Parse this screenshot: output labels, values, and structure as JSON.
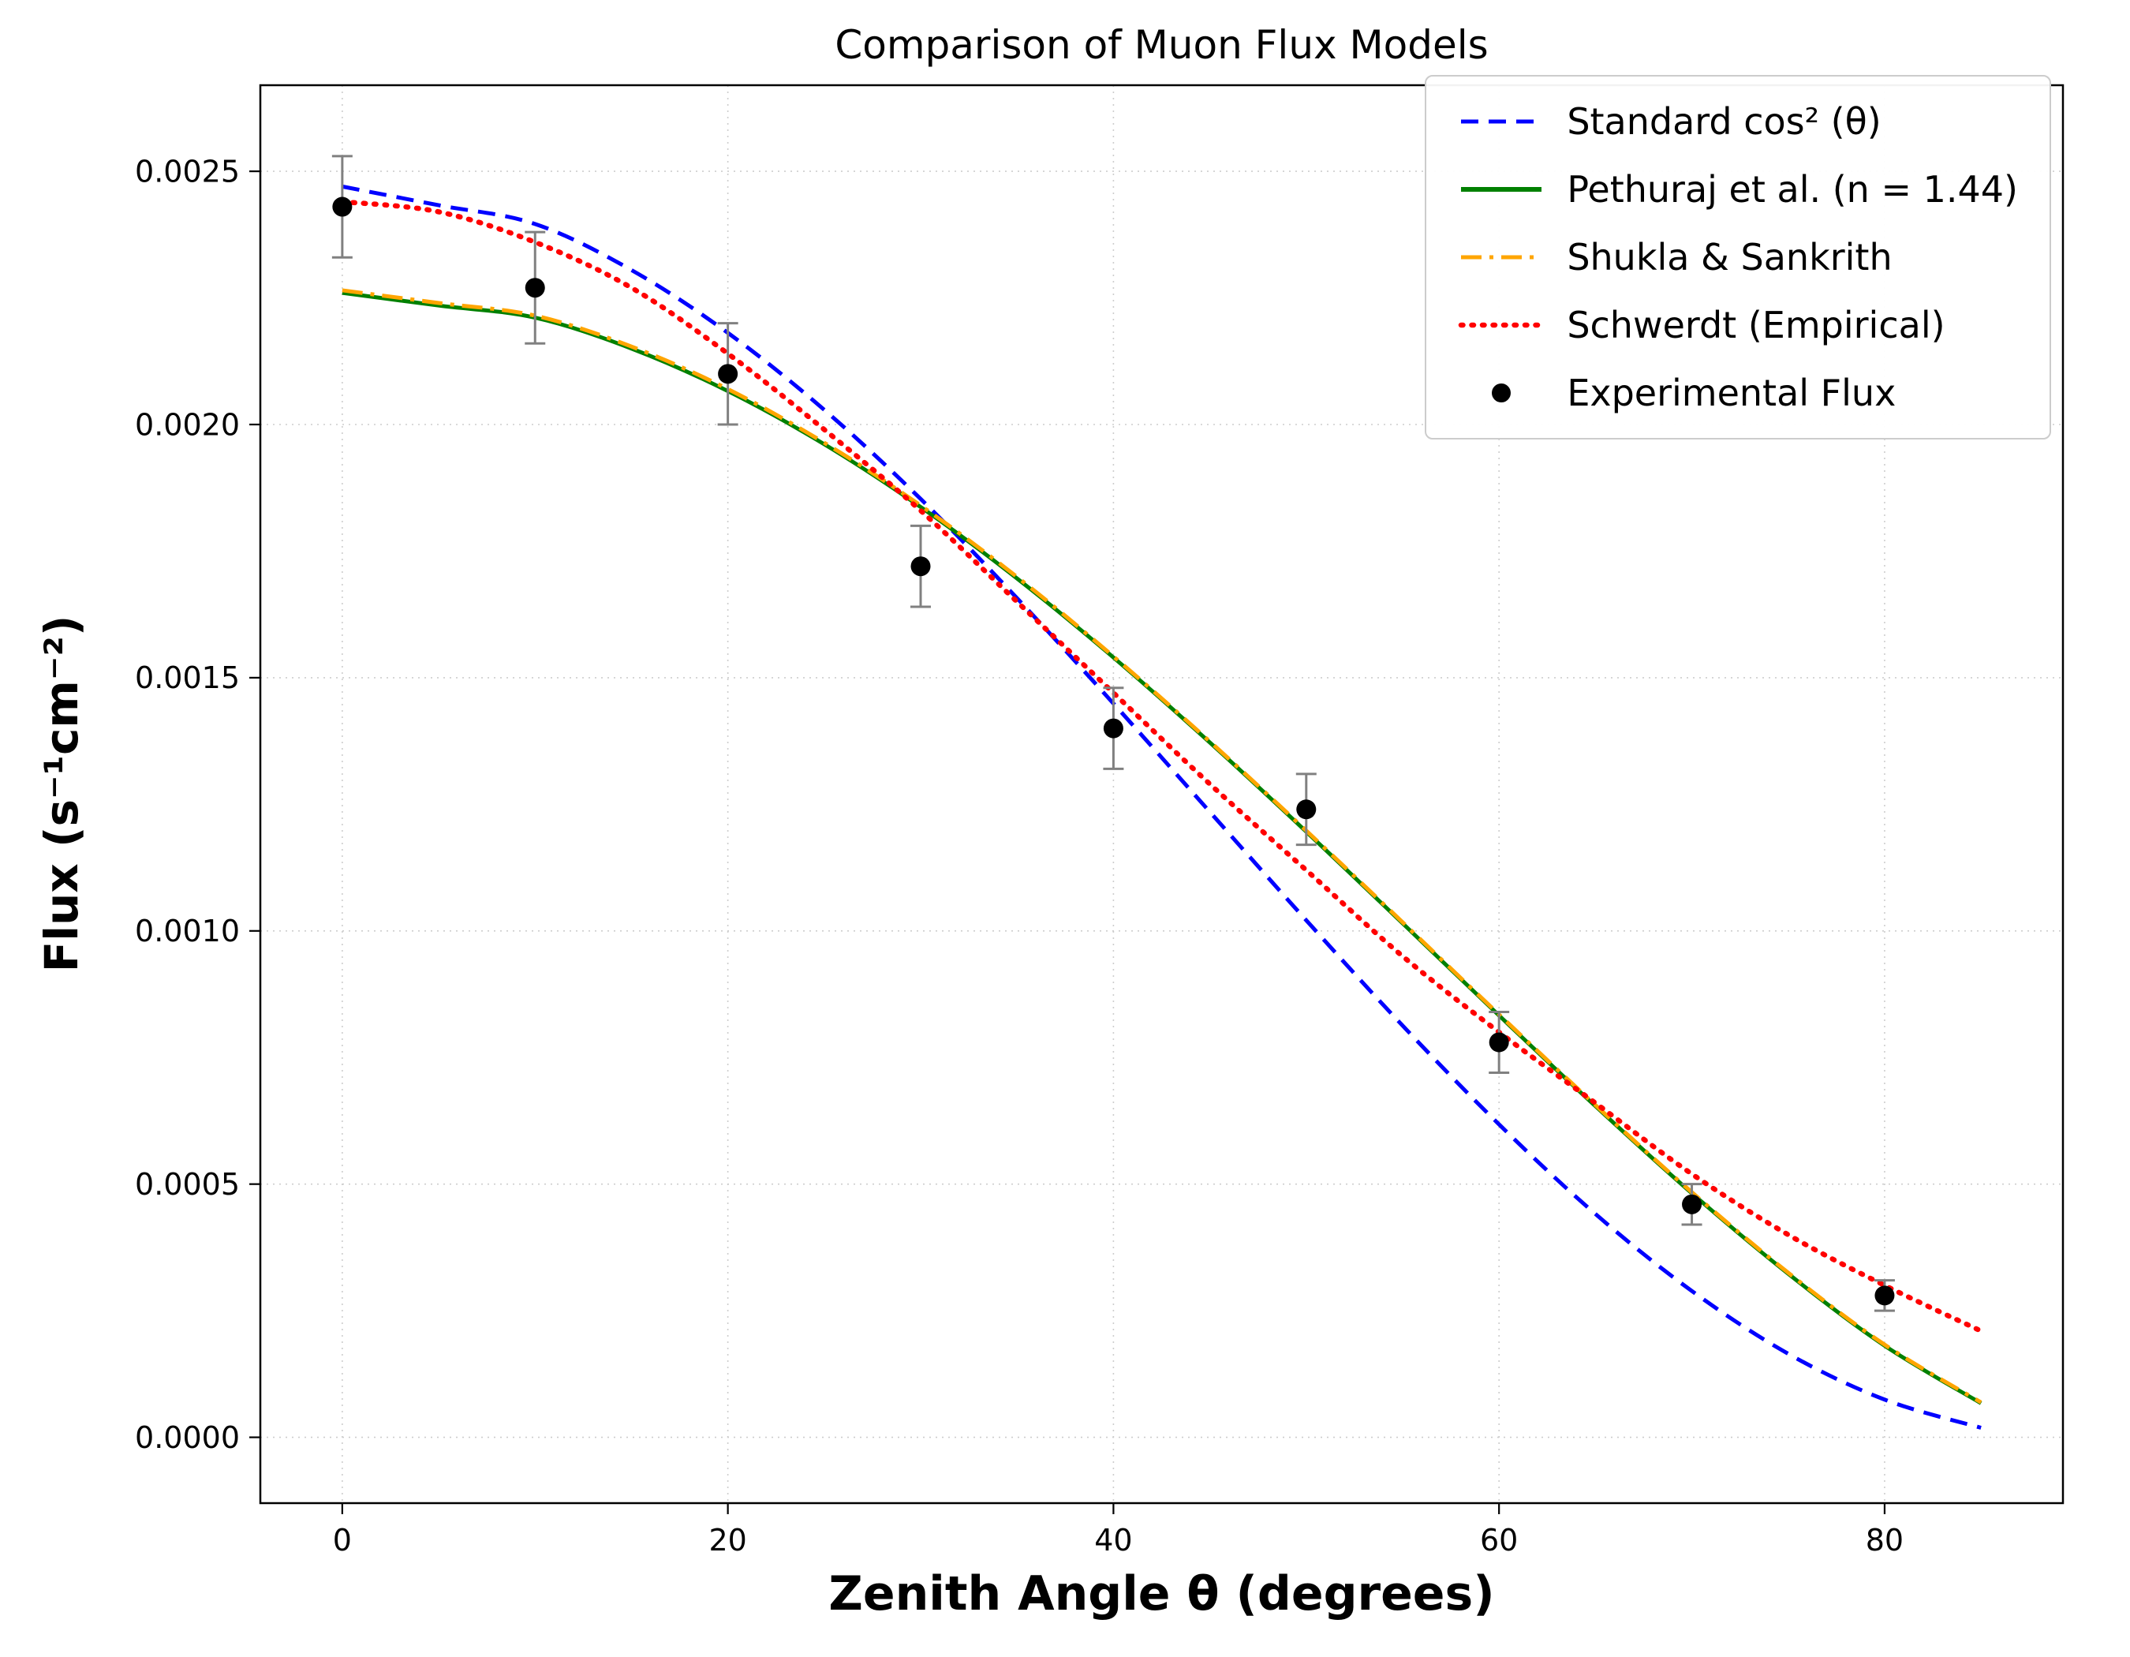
{
  "figure": {
    "title": "Comparison of Muon Flux Models",
    "xlabel": "Zenith Angle θ (degrees)",
    "ylabel": "Flux (s⁻¹cm⁻²)"
  },
  "chart_data": {
    "type": "line",
    "title": "Comparison of Muon Flux Models",
    "xlabel": "Zenith Angle θ (degrees)",
    "ylabel": "Flux (s⁻¹cm⁻²)",
    "xlim": [
      -4.25,
      89.25
    ],
    "ylim": [
      -0.00013,
      0.00267
    ],
    "grid": true,
    "legend_position": "upper right",
    "xticks": {
      "values": [
        0,
        20,
        40,
        60,
        80
      ],
      "labels": [
        "0",
        "20",
        "40",
        "60",
        "80"
      ]
    },
    "yticks": {
      "values": [
        0.0,
        0.0005,
        0.001,
        0.0015,
        0.002,
        0.0025
      ],
      "labels": [
        "0.0000",
        "0.0005",
        "0.0010",
        "0.0015",
        "0.0020",
        "0.0025"
      ]
    },
    "series": [
      {
        "name": "Standard cos² (θ)",
        "color": "#0000ff",
        "linestyle": "dashed",
        "x": [
          0,
          5,
          10,
          15,
          20,
          25,
          30,
          35,
          40,
          45,
          50,
          55,
          60,
          65,
          70,
          75,
          80,
          85
        ],
        "y": [
          0.00247,
          0.002433,
          0.002396,
          0.002305,
          0.002181,
          0.002029,
          0.001853,
          0.001657,
          0.001449,
          0.001235,
          0.001021,
          0.000813,
          0.000618,
          0.000441,
          0.000289,
          0.000165,
          7.45e-05,
          1.88e-05
        ]
      },
      {
        "name": "Pethuraj et al. (n = 1.44)",
        "color": "#008000",
        "linestyle": "solid",
        "x": [
          0,
          5,
          10,
          15,
          20,
          25,
          30,
          35,
          40,
          45,
          50,
          55,
          60,
          65,
          70,
          75,
          80,
          85
        ],
        "y": [
          0.00226,
          0.002235,
          0.002211,
          0.00215,
          0.002066,
          0.001961,
          0.001837,
          0.001696,
          0.00154,
          0.001372,
          0.001196,
          0.001015,
          0.000833,
          0.000654,
          0.000482,
          0.000323,
          0.000181,
          6.73e-05
        ]
      },
      {
        "name": "Shukla & Sankrith",
        "color": "#ffa500",
        "linestyle": "dashdot",
        "x": [
          0,
          5,
          10,
          15,
          20,
          25,
          30,
          35,
          40,
          45,
          50,
          55,
          60,
          65,
          70,
          75,
          80,
          85
        ],
        "y": [
          0.002265,
          0.00224,
          0.002215,
          0.002154,
          0.00207,
          0.001964,
          0.00184,
          0.001699,
          0.001542,
          0.001374,
          0.001198,
          0.001017,
          0.000835,
          0.000656,
          0.000484,
          0.000325,
          0.000183,
          6.9e-05
        ]
      },
      {
        "name": "Schwerdt (Empirical)",
        "color": "#ff0000",
        "linestyle": "dotted",
        "x": [
          0,
          5,
          10,
          15,
          20,
          25,
          30,
          35,
          40,
          45,
          50,
          55,
          60,
          65,
          70,
          75,
          80,
          85
        ],
        "y": [
          0.00244,
          0.00242,
          0.00236,
          0.00227,
          0.00214,
          0.00199,
          0.00183,
          0.00165,
          0.00147,
          0.00129,
          0.00112,
          0.00095,
          0.0008,
          0.00066,
          0.00052,
          0.0004,
          0.0003,
          0.00021
        ]
      }
    ],
    "scatter": {
      "name": "Experimental Flux",
      "color": "#000000",
      "errorbar_color": "#808080",
      "x": [
        0,
        10,
        20,
        30,
        40,
        50,
        60,
        70,
        80
      ],
      "y": [
        0.00243,
        0.00227,
        0.0021,
        0.00172,
        0.0014,
        0.00124,
        0.00078,
        0.00046,
        0.00028
      ],
      "yerr": [
        0.0001,
        0.00011,
        0.0001,
        8e-05,
        8e-05,
        7e-05,
        6e-05,
        4e-05,
        3e-05
      ]
    }
  }
}
